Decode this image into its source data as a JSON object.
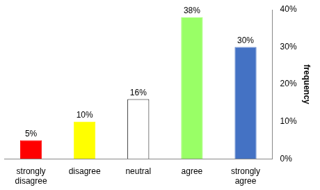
{
  "chart_data": {
    "type": "bar",
    "categories": [
      "strongly disagree",
      "disagree",
      "neutral",
      "agree",
      "strongly agree"
    ],
    "values": [
      5,
      10,
      16,
      38,
      30
    ],
    "value_labels": [
      "5%",
      "10%",
      "16%",
      "38%",
      "30%"
    ],
    "colors": [
      "#ff0000",
      "#ffff00",
      "#ffffff",
      "#99ff66",
      "#4472c4"
    ],
    "y_label": "frequency",
    "ylim": [
      0,
      40
    ],
    "yticks": [
      {
        "value": 0,
        "label": "0%"
      },
      {
        "value": 10,
        "label": "10%"
      },
      {
        "value": 20,
        "label": "20%"
      },
      {
        "value": 30,
        "label": "30%"
      },
      {
        "value": 40,
        "label": "40%"
      }
    ],
    "grid": false,
    "data_labels": true
  }
}
